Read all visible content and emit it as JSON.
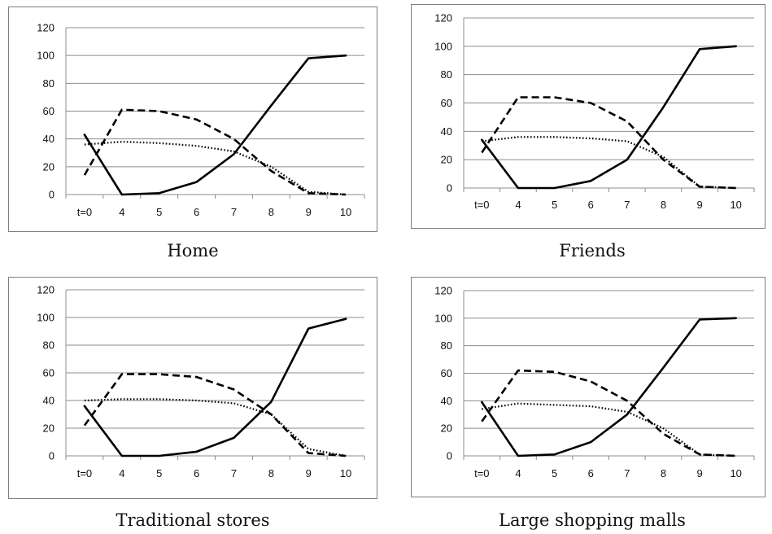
{
  "chart_data": [
    {
      "type": "line",
      "title": "Home",
      "categories": [
        "t=0",
        "4",
        "5",
        "6",
        "7",
        "8",
        "9",
        "10"
      ],
      "ylim": [
        0,
        120
      ],
      "yticks": [
        0,
        20,
        40,
        60,
        80,
        100,
        120
      ],
      "grid": true,
      "legend": "none",
      "series": [
        {
          "style": "solid",
          "values": [
            43,
            0,
            1,
            9,
            29,
            64,
            98,
            100
          ]
        },
        {
          "style": "dashed",
          "values": [
            14,
            61,
            60,
            54,
            40,
            17,
            1,
            0
          ]
        },
        {
          "style": "dotted",
          "values": [
            36,
            38,
            37,
            35,
            31,
            20,
            2,
            0
          ]
        }
      ]
    },
    {
      "type": "line",
      "title": "Friends",
      "categories": [
        "t=0",
        "4",
        "5",
        "6",
        "7",
        "8",
        "9",
        "10"
      ],
      "ylim": [
        0,
        120
      ],
      "yticks": [
        0,
        20,
        40,
        60,
        80,
        100,
        120
      ],
      "grid": true,
      "legend": "none",
      "series": [
        {
          "style": "solid",
          "values": [
            34,
            0,
            0,
            5,
            20,
            57,
            98,
            100
          ]
        },
        {
          "style": "dashed",
          "values": [
            25,
            64,
            64,
            60,
            47,
            20,
            1,
            0
          ]
        },
        {
          "style": "dotted",
          "values": [
            33,
            36,
            36,
            35,
            33,
            22,
            1,
            0
          ]
        }
      ]
    },
    {
      "type": "line",
      "title": "Traditional stores",
      "categories": [
        "t=0",
        "4",
        "5",
        "6",
        "7",
        "8",
        "9",
        "10"
      ],
      "ylim": [
        0,
        120
      ],
      "yticks": [
        0,
        20,
        40,
        60,
        80,
        100,
        120
      ],
      "grid": true,
      "legend": "none",
      "series": [
        {
          "style": "solid",
          "values": [
            36,
            0,
            0,
            3,
            13,
            39,
            92,
            99
          ]
        },
        {
          "style": "dashed",
          "values": [
            22,
            59,
            59,
            57,
            48,
            30,
            2,
            0
          ]
        },
        {
          "style": "dotted",
          "values": [
            40,
            41,
            41,
            40,
            38,
            30,
            5,
            0
          ]
        }
      ]
    },
    {
      "type": "line",
      "title": "Large shopping malls",
      "categories": [
        "t=0",
        "4",
        "5",
        "6",
        "7",
        "8",
        "9",
        "10"
      ],
      "ylim": [
        0,
        120
      ],
      "yticks": [
        0,
        20,
        40,
        60,
        80,
        100,
        120
      ],
      "grid": true,
      "legend": "none",
      "series": [
        {
          "style": "solid",
          "values": [
            39,
            0,
            1,
            10,
            30,
            64,
            99,
            100
          ]
        },
        {
          "style": "dashed",
          "values": [
            25,
            62,
            61,
            54,
            40,
            16,
            1,
            0
          ]
        },
        {
          "style": "dotted",
          "values": [
            34,
            38,
            37,
            36,
            32,
            20,
            1,
            0
          ]
        }
      ]
    }
  ]
}
